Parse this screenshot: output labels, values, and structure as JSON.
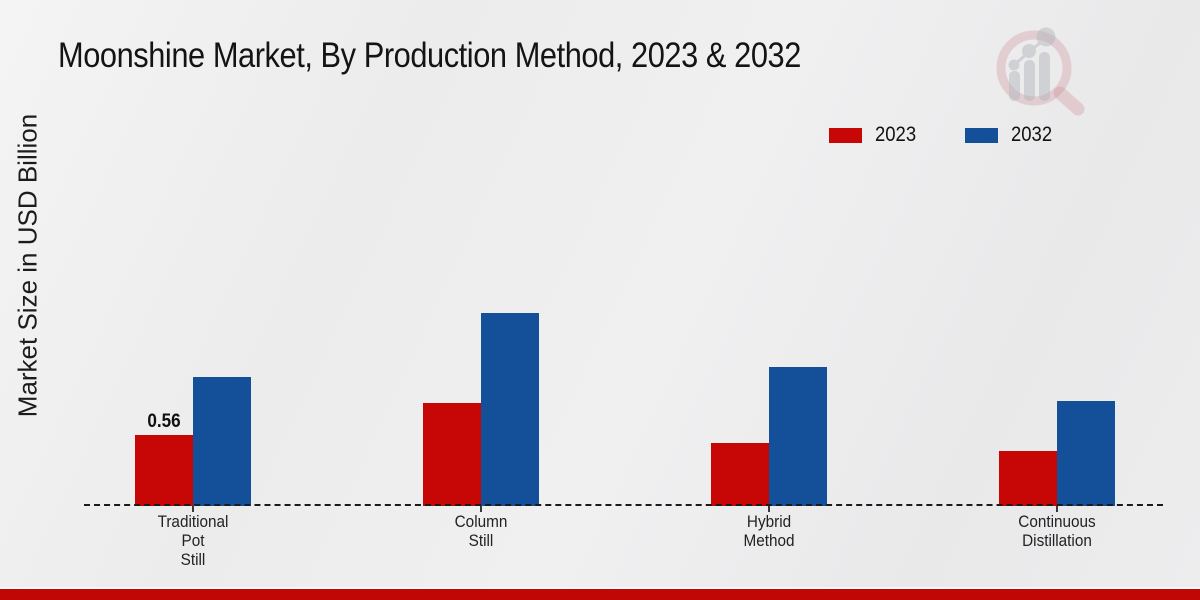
{
  "page": {
    "title": "Moonshine Market, By Production Method, 2023 & 2032",
    "y_axis_label": "Market Size in USD Billion",
    "background_color": "#ededed",
    "footer_accent_color": "#c10606"
  },
  "legend": {
    "position": "top-right",
    "items": [
      {
        "label": "2023",
        "color": "#c70606"
      },
      {
        "label": "2032",
        "color": "#14509a"
      }
    ]
  },
  "watermark": {
    "icon": "magnifier-bar-chart-logo",
    "ring_color": "#cf8f97",
    "glyph_color": "#b4b8bf"
  },
  "chart_data": {
    "type": "bar",
    "title": "Moonshine Market, By Production Method, 2023 & 2032",
    "xlabel": "",
    "ylabel": "Market Size in USD Billion",
    "value_unit": "USD Billion",
    "grid": false,
    "baseline_style": "dashed",
    "legend_position": "top-right",
    "categories": [
      "Traditional Pot Still",
      "Column Still",
      "Hybrid Method",
      "Continuous Distillation"
    ],
    "category_display_lines": [
      [
        "Traditional",
        "Pot",
        "Still"
      ],
      [
        "Column",
        "Still"
      ],
      [
        "Hybrid",
        "Method"
      ],
      [
        "Continuous",
        "Distillation"
      ]
    ],
    "series": [
      {
        "name": "2023",
        "color": "#c70606",
        "values": [
          0.56,
          0.81,
          0.5,
          0.43
        ]
      },
      {
        "name": "2032",
        "color": "#14509a",
        "values": [
          1.02,
          1.52,
          1.1,
          0.83
        ]
      }
    ],
    "data_labels": [
      {
        "series": "2023",
        "category_index": 0,
        "text": "0.56"
      }
    ],
    "ylim": [
      0,
      3.2
    ]
  }
}
